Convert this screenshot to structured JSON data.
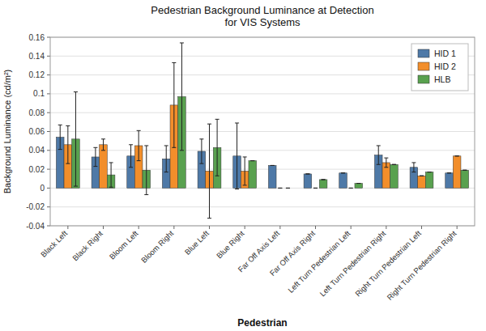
{
  "chart_data": {
    "type": "bar",
    "title": "Pedestrian Background Luminance at Detection\nfor VIS Systems",
    "x_label": "Pedestrian",
    "y_label": "Background Luminance (cd/m²)",
    "categories": [
      "Black Left",
      "Black Right",
      "Bloom Left",
      "Bloom Right",
      "Blue Left",
      "Blue Right",
      "Far Off Axis Left",
      "Far Off Axis Right",
      "Left Turn Pedestrian Left",
      "Left Turn Pedestrian Right",
      "Right Turn Pedestrian Left",
      "Right Turn Pedestrian Right"
    ],
    "series": [
      {
        "name": "HID 1",
        "color": "#4e79a7",
        "values": [
          0.054,
          0.033,
          0.034,
          0.031,
          0.039,
          0.034,
          0.024,
          0.015,
          0.016,
          0.035,
          0.022,
          0.016
        ],
        "errors": [
          0.013,
          0.01,
          0.012,
          0.014,
          0.013,
          0.035,
          0.0,
          0.0,
          0.0,
          0.01,
          0.005,
          0.0
        ]
      },
      {
        "name": "HID 2",
        "color": "#f28e2b",
        "values": [
          0.046,
          0.046,
          0.045,
          0.088,
          0.018,
          0.018,
          0.0,
          0.0,
          0.0,
          0.027,
          0.013,
          0.034
        ],
        "errors": [
          0.02,
          0.006,
          0.016,
          0.045,
          0.05,
          0.015,
          0.0,
          0.0,
          0.0,
          0.005,
          0.0,
          0.0
        ]
      },
      {
        "name": "HLB",
        "color": "#59a14f",
        "values": [
          0.052,
          0.014,
          0.019,
          0.097,
          0.043,
          0.029,
          0.0,
          0.009,
          0.005,
          0.025,
          0.017,
          0.019
        ],
        "errors": [
          0.05,
          0.013,
          0.026,
          0.057,
          0.03,
          0.0,
          0.0,
          0.0,
          0.0,
          0.0,
          0.0,
          0.0
        ]
      }
    ],
    "ylim": [
      -0.04,
      0.16
    ],
    "yticks": [
      -0.04,
      -0.02,
      0,
      0.02,
      0.04,
      0.06,
      0.08,
      0.1,
      0.12,
      0.14,
      0.16
    ],
    "grid": true,
    "legend": "upper right"
  }
}
